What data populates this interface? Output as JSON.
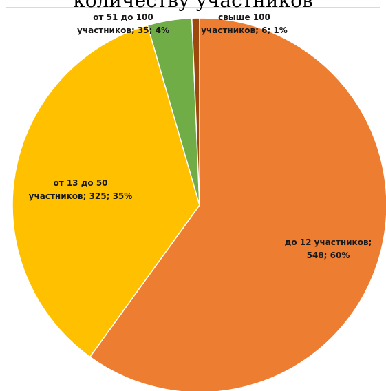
{
  "chart_data": {
    "type": "pie",
    "title": "количеству участников",
    "slices": [
      {
        "label_line1": "до 12 участников;",
        "label_line2": "548; 60%",
        "name": "до 12 участников",
        "value": 548,
        "percent": 60,
        "color": "#ED7D31"
      },
      {
        "label_line1": "от 13 до 50",
        "label_line2": "участников; 325; 35%",
        "name": "от 13 до 50 участников",
        "value": 325,
        "percent": 35,
        "color": "#FFC000"
      },
      {
        "label_line1": "от 51 до 100",
        "label_line2": "участников; 35; 4%",
        "name": "от 51 до 100 участников",
        "value": 35,
        "percent": 4,
        "color": "#70AD47"
      },
      {
        "label_line1": "свыше 100",
        "label_line2": "участников; 6; 1%",
        "name": "свыше 100 участников",
        "value": 6,
        "percent": 1,
        "color": "#9E480E"
      }
    ],
    "start_angle_deg": 0,
    "direction": "clockwise"
  }
}
